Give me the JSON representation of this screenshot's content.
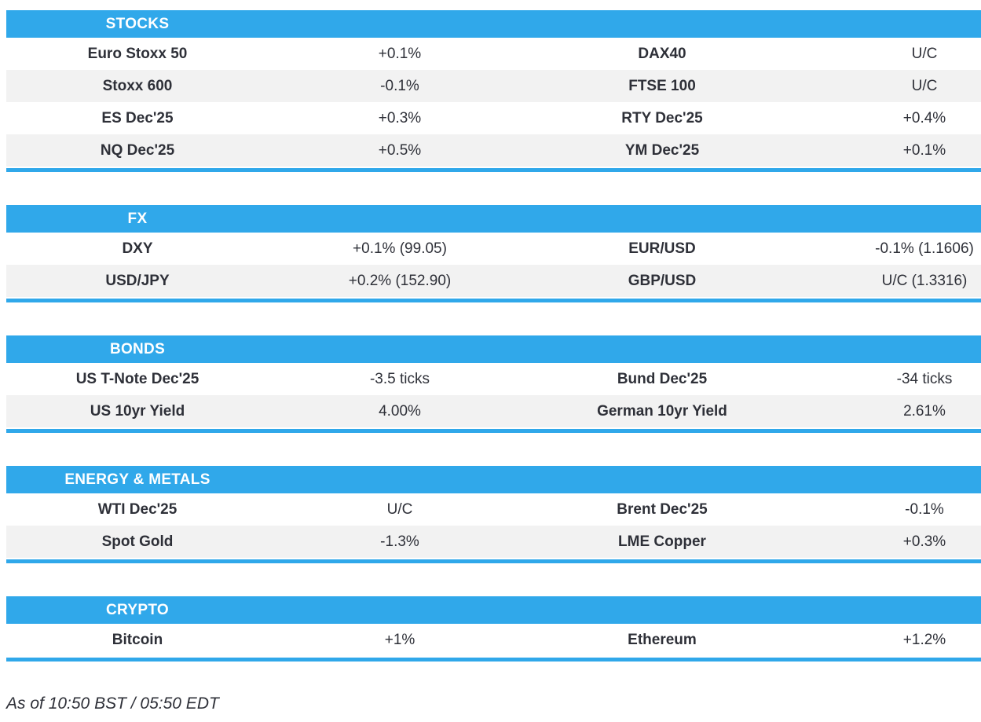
{
  "colors": {
    "accent": "#30a8ea",
    "alt_row": "#f2f2f2",
    "text": "#2e3038",
    "header_text": "#ffffff"
  },
  "sections": [
    {
      "title": "STOCKS",
      "rows": [
        [
          "Euro Stoxx 50",
          "+0.1%",
          "DAX40",
          "U/C"
        ],
        [
          "Stoxx 600",
          "-0.1%",
          "FTSE 100",
          "U/C"
        ],
        [
          "ES Dec'25",
          "+0.3%",
          "RTY Dec'25",
          "+0.4%"
        ],
        [
          "NQ Dec'25",
          "+0.5%",
          "YM Dec'25",
          "+0.1%"
        ]
      ]
    },
    {
      "title": "FX",
      "rows": [
        [
          "DXY",
          "+0.1% (99.05)",
          "EUR/USD",
          "-0.1% (1.1606)"
        ],
        [
          "USD/JPY",
          "+0.2% (152.90)",
          "GBP/USD",
          "U/C (1.3316)"
        ]
      ]
    },
    {
      "title": "BONDS",
      "rows": [
        [
          "US T-Note Dec'25",
          "-3.5 ticks",
          "Bund Dec'25",
          "-34 ticks"
        ],
        [
          "US 10yr Yield",
          "4.00%",
          "German 10yr Yield",
          "2.61%"
        ]
      ]
    },
    {
      "title": "ENERGY & METALS",
      "rows": [
        [
          "WTI Dec'25",
          "U/C",
          "Brent Dec'25",
          "-0.1%"
        ],
        [
          "Spot Gold",
          "-1.3%",
          "LME Copper",
          "+0.3%"
        ]
      ]
    },
    {
      "title": "CRYPTO",
      "rows": [
        [
          "Bitcoin",
          "+1%",
          "Ethereum",
          "+1.2%"
        ]
      ]
    }
  ],
  "footer": {
    "as_of": "As of 10:50 BST / 05:50 EDT"
  }
}
